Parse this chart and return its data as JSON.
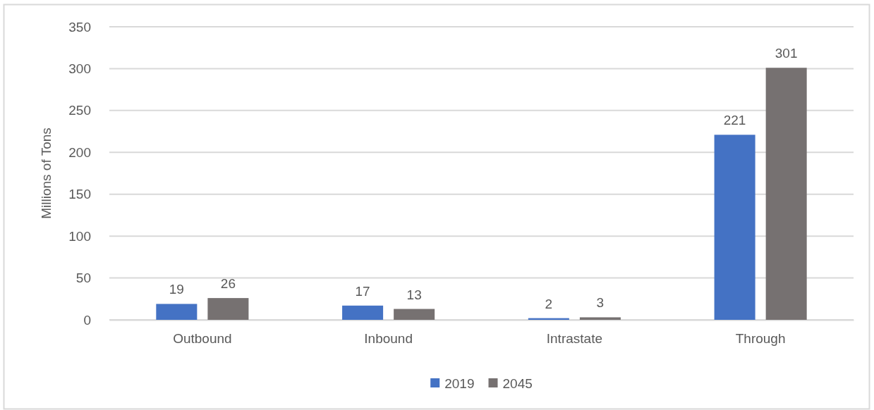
{
  "chart_data": {
    "type": "bar",
    "ylabel": "Millions of Tons",
    "categories": [
      "Outbound",
      "Inbound",
      "Intrastate",
      "Through"
    ],
    "series": [
      {
        "name": "2019",
        "color": "#4472c4",
        "values": [
          19,
          17,
          2,
          221
        ]
      },
      {
        "name": "2045",
        "color": "#767171",
        "values": [
          26,
          13,
          3,
          301
        ]
      }
    ],
    "ylim": [
      0,
      350
    ],
    "yticks": [
      0,
      50,
      100,
      150,
      200,
      250,
      300,
      350
    ],
    "grid": "y",
    "legend": "bottom",
    "data_labels": true
  }
}
